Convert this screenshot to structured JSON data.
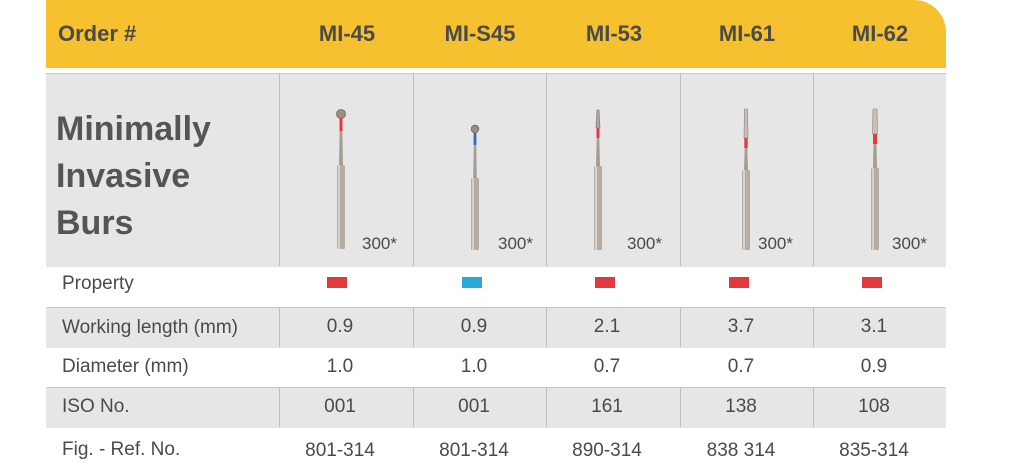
{
  "header": {
    "order_label": "Order #",
    "columns": [
      "MI-45",
      "MI-S45",
      "MI-53",
      "MI-61",
      "MI-62"
    ]
  },
  "title": [
    "Minimally",
    "Invasive",
    "Burs"
  ],
  "bur_images": [
    {
      "qty": "300*"
    },
    {
      "qty": "300*"
    },
    {
      "qty": "300*"
    },
    {
      "qty": "300*"
    },
    {
      "qty": "300*"
    }
  ],
  "rows": {
    "property": {
      "label": "Property",
      "colors": [
        "#e03a3e",
        "#2aa9d9",
        "#e03a3e",
        "#e03a3e",
        "#e03a3e"
      ]
    },
    "working_length": {
      "label": "Working length (mm)",
      "values": [
        "0.9",
        "0.9",
        "2.1",
        "3.7",
        "3.1"
      ]
    },
    "diameter": {
      "label": "Diameter (mm)",
      "values": [
        "1.0",
        "1.0",
        "0.7",
        "0.7",
        "0.9"
      ]
    },
    "iso": {
      "label": "ISO No.",
      "values": [
        "001",
        "001",
        "161",
        "138",
        "108"
      ]
    },
    "fig_ref": {
      "label": "Fig. - Ref. No.",
      "values": [
        "801-314",
        "801-314",
        "890-314",
        "838 314",
        "835-314"
      ]
    }
  }
}
